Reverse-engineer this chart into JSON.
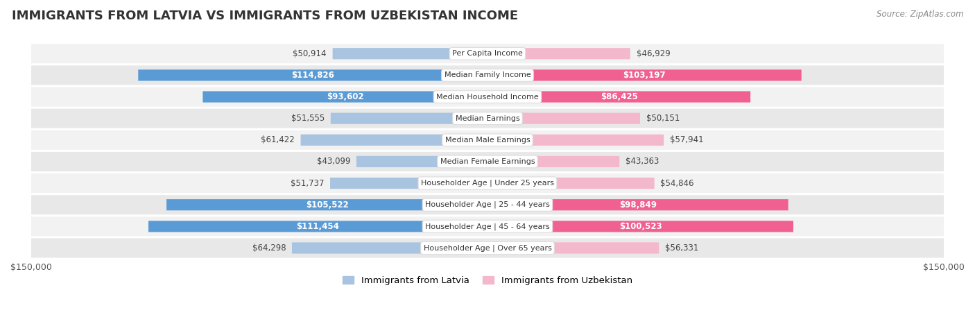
{
  "title": "IMMIGRANTS FROM LATVIA VS IMMIGRANTS FROM UZBEKISTAN INCOME",
  "source": "Source: ZipAtlas.com",
  "categories": [
    "Per Capita Income",
    "Median Family Income",
    "Median Household Income",
    "Median Earnings",
    "Median Male Earnings",
    "Median Female Earnings",
    "Householder Age | Under 25 years",
    "Householder Age | 25 - 44 years",
    "Householder Age | 45 - 64 years",
    "Householder Age | Over 65 years"
  ],
  "latvia_values": [
    50914,
    114826,
    93602,
    51555,
    61422,
    43099,
    51737,
    105522,
    111454,
    64298
  ],
  "uzbekistan_values": [
    46929,
    103197,
    86425,
    50151,
    57941,
    43363,
    54846,
    98849,
    100523,
    56331
  ],
  "latvia_labels": [
    "$50,914",
    "$114,826",
    "$93,602",
    "$51,555",
    "$61,422",
    "$43,099",
    "$51,737",
    "$105,522",
    "$111,454",
    "$64,298"
  ],
  "uzbekistan_labels": [
    "$46,929",
    "$103,197",
    "$86,425",
    "$50,151",
    "$57,941",
    "$43,363",
    "$54,846",
    "$98,849",
    "$100,523",
    "$56,331"
  ],
  "latvia_color_light": "#a8c4e0",
  "latvia_color_dark": "#5b9bd5",
  "uzbekistan_color_light": "#f4b8cc",
  "uzbekistan_color_dark": "#f06090",
  "max_value": 150000,
  "legend_latvia": "Immigrants from Latvia",
  "legend_uzbekistan": "Immigrants from Uzbekistan",
  "background_color": "#ffffff",
  "row_bg_even": "#f2f2f2",
  "row_bg_odd": "#e8e8e8",
  "bar_height": 0.52,
  "inside_threshold_latvia": 70000,
  "inside_threshold_uzbekistan": 70000,
  "label_fontsize": 8.5,
  "cat_fontsize": 8.0,
  "title_fontsize": 13
}
